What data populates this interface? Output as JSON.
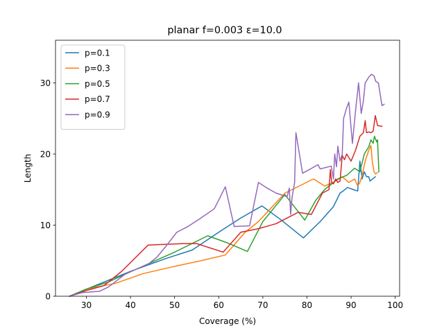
{
  "chart_data": {
    "type": "line",
    "title": "planar f=0.003 ε=10.0",
    "xlabel": "Coverage (%)",
    "ylabel": "Length",
    "xlim": [
      23,
      101
    ],
    "ylim": [
      0,
      36
    ],
    "xticks": [
      30,
      40,
      50,
      60,
      70,
      80,
      90,
      100
    ],
    "yticks": [
      0,
      10,
      20,
      30
    ],
    "grid": false,
    "legend_position": "upper-left",
    "series": [
      {
        "name": "p=0.1",
        "color": "#1f77b4",
        "points": [
          [
            26.2,
            0
          ],
          [
            32,
            1.5
          ],
          [
            40,
            3.5
          ],
          [
            48,
            5.3
          ],
          [
            54,
            6.5
          ],
          [
            60,
            9.0
          ],
          [
            65,
            11.0
          ],
          [
            69.8,
            12.7
          ],
          [
            74,
            10.8
          ],
          [
            79.2,
            8.2
          ],
          [
            83,
            10.5
          ],
          [
            86,
            12.6
          ],
          [
            87.5,
            14.5
          ],
          [
            88.2,
            14.8
          ],
          [
            89.2,
            15.3
          ],
          [
            90.5,
            15.0
          ],
          [
            91.5,
            14.8
          ],
          [
            92,
            19.0
          ],
          [
            92.5,
            16.5
          ],
          [
            93,
            17.5
          ],
          [
            93.5,
            16.8
          ],
          [
            94,
            16.8
          ],
          [
            94.3,
            16.2
          ],
          [
            95.5,
            16.8
          ]
        ]
      },
      {
        "name": "p=0.3",
        "color": "#ff7f0e",
        "points": [
          [
            26.2,
            0
          ],
          [
            30,
            1.0
          ],
          [
            36.5,
            1.8
          ],
          [
            43,
            3.2
          ],
          [
            50,
            4.2
          ],
          [
            56,
            5.0
          ],
          [
            61.5,
            5.8
          ],
          [
            66,
            9.0
          ],
          [
            69,
            10.5
          ],
          [
            75,
            14.5
          ],
          [
            81.5,
            16.5
          ],
          [
            84,
            15.5
          ],
          [
            86,
            16.0
          ],
          [
            88,
            16.8
          ],
          [
            89.5,
            16.0
          ],
          [
            90.8,
            16.5
          ],
          [
            91.5,
            15.5
          ],
          [
            92,
            16.0
          ],
          [
            92.5,
            17.0
          ],
          [
            93.2,
            19.0
          ],
          [
            94,
            20.5
          ],
          [
            94.5,
            21.2
          ],
          [
            94.8,
            19.0
          ],
          [
            95.2,
            17.5
          ],
          [
            95.5,
            17.2
          ],
          [
            96,
            17.4
          ]
        ]
      },
      {
        "name": "p=0.5",
        "color": "#2ca02c",
        "points": [
          [
            26.2,
            0
          ],
          [
            30,
            1.0
          ],
          [
            35,
            2.0
          ],
          [
            42,
            4.0
          ],
          [
            50,
            6.2
          ],
          [
            57.5,
            8.5
          ],
          [
            62,
            7.5
          ],
          [
            66.5,
            6.3
          ],
          [
            70,
            10.5
          ],
          [
            75,
            14.3
          ],
          [
            79.5,
            10.7
          ],
          [
            82,
            13.5
          ],
          [
            84,
            15.0
          ],
          [
            87,
            16.5
          ],
          [
            89,
            17.0
          ],
          [
            90.8,
            18.0
          ],
          [
            92,
            17.5
          ],
          [
            93,
            20.0
          ],
          [
            94,
            21.0
          ],
          [
            94.5,
            22.0
          ],
          [
            95,
            21.5
          ],
          [
            95.3,
            22.5
          ],
          [
            95.8,
            21.7
          ],
          [
            96,
            22.0
          ],
          [
            96.3,
            17.5
          ]
        ]
      },
      {
        "name": "p=0.7",
        "color": "#d62728",
        "points": [
          [
            26.2,
            0
          ],
          [
            30,
            0.8
          ],
          [
            34,
            1.5
          ],
          [
            38,
            3.5
          ],
          [
            44,
            7.2
          ],
          [
            52,
            7.4
          ],
          [
            55,
            7.4
          ],
          [
            61,
            6.2
          ],
          [
            65,
            9.0
          ],
          [
            69,
            9.5
          ],
          [
            73,
            10.2
          ],
          [
            78,
            11.8
          ],
          [
            81,
            11.5
          ],
          [
            83.5,
            14.5
          ],
          [
            85,
            15.0
          ],
          [
            85.3,
            17.8
          ],
          [
            85.6,
            16.0
          ],
          [
            86,
            15.8
          ],
          [
            86.5,
            16.5
          ],
          [
            87,
            16.0
          ],
          [
            87.5,
            16.2
          ],
          [
            88,
            19.8
          ],
          [
            88.5,
            19.2
          ],
          [
            89,
            20.0
          ],
          [
            90,
            19.0
          ],
          [
            91,
            20.5
          ],
          [
            92,
            22.5
          ],
          [
            92.8,
            23.0
          ],
          [
            93.2,
            24.7
          ],
          [
            93.5,
            23.0
          ],
          [
            94,
            23.1
          ],
          [
            94.5,
            23.0
          ],
          [
            95,
            23.2
          ],
          [
            95.5,
            25.4
          ],
          [
            96,
            24.0
          ],
          [
            97,
            23.9
          ]
        ]
      },
      {
        "name": "p=0.9",
        "color": "#9467bd",
        "points": [
          [
            26.2,
            0
          ],
          [
            29,
            0.5
          ],
          [
            33,
            0.7
          ],
          [
            35,
            1.3
          ],
          [
            39,
            3.2
          ],
          [
            44,
            4.5
          ],
          [
            46,
            5.5
          ],
          [
            48,
            7.0
          ],
          [
            50.5,
            9.0
          ],
          [
            53,
            9.8
          ],
          [
            55.5,
            10.8
          ],
          [
            59,
            12.3
          ],
          [
            61.5,
            15.4
          ],
          [
            63.5,
            9.8
          ],
          [
            67,
            9.9
          ],
          [
            69,
            16.0
          ],
          [
            71,
            15.2
          ],
          [
            73,
            14.5
          ],
          [
            75.5,
            14.0
          ],
          [
            76,
            15.2
          ],
          [
            76.3,
            11.5
          ],
          [
            76.6,
            13.8
          ],
          [
            77.2,
            16.0
          ],
          [
            77.5,
            23.0
          ],
          [
            79,
            17.3
          ],
          [
            80.5,
            17.8
          ],
          [
            82.5,
            18.5
          ],
          [
            83,
            17.9
          ],
          [
            85.5,
            18.3
          ],
          [
            86,
            16.5
          ],
          [
            86.3,
            20.0
          ],
          [
            86.7,
            18.2
          ],
          [
            87,
            21.1
          ],
          [
            87.5,
            19.0
          ],
          [
            88,
            20.0
          ],
          [
            88.3,
            25.0
          ],
          [
            89,
            26.5
          ],
          [
            89.5,
            27.3
          ],
          [
            90.3,
            21.5
          ],
          [
            91,
            26.0
          ],
          [
            91.7,
            30.0
          ],
          [
            92.3,
            25.7
          ],
          [
            92.8,
            27.5
          ],
          [
            93.2,
            30.0
          ],
          [
            94,
            30.8
          ],
          [
            94.6,
            31.2
          ],
          [
            95.2,
            31.0
          ],
          [
            95.6,
            30.2
          ],
          [
            96.2,
            30.0
          ],
          [
            97,
            26.8
          ],
          [
            97.5,
            27.0
          ]
        ]
      }
    ]
  }
}
